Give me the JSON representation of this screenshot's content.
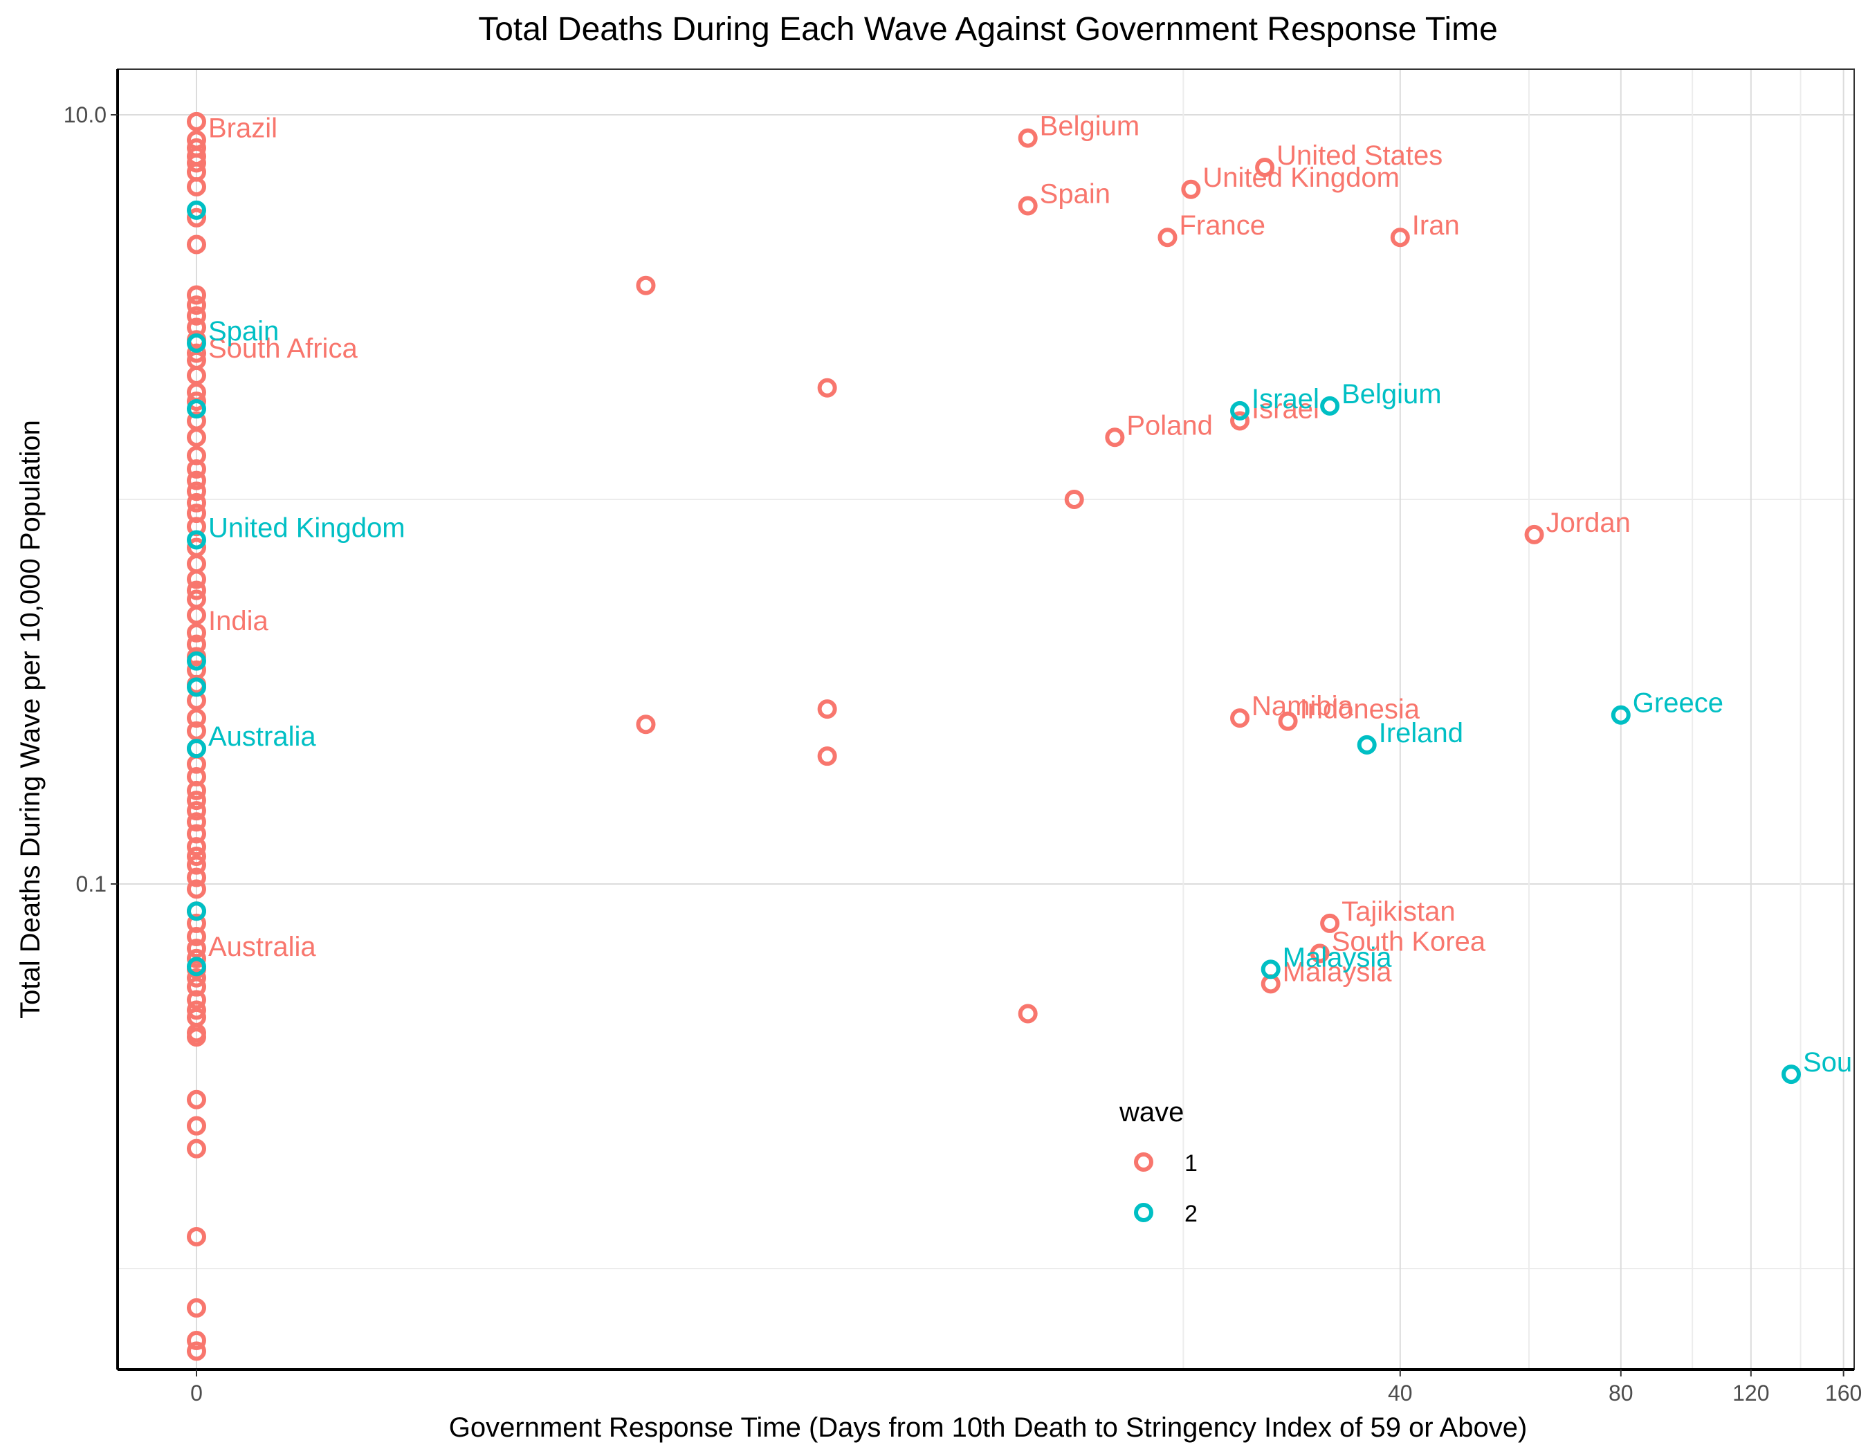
{
  "chart_data": {
    "type": "scatter",
    "title": "Total Deaths During Each Wave Against Government Response Time",
    "xlabel": "Government Response Time (Days from 10th Death to Stringency Index of 59 or Above)",
    "ylabel": "Total Deaths During Wave per 10,000 Population",
    "x_scale": "pseudo-log (log1p)",
    "y_scale": "log10",
    "xlim": [
      -0.6,
      170
    ],
    "ylim": [
      0.0061,
      14.5
    ],
    "x_ticks": [
      0,
      40,
      80,
      120,
      160
    ],
    "x_tick_labels": [
      "0",
      "40",
      "80",
      "120",
      "160"
    ],
    "y_ticks": [
      0.1,
      10
    ],
    "y_tick_labels": [
      "0.1",
      "10.0"
    ],
    "grid": true,
    "legend": {
      "title": "wave",
      "placement": "inside-bottom-center",
      "entries": [
        {
          "label": "1",
          "color": "#F8766D"
        },
        {
          "label": "2",
          "color": "#00BFC4"
        }
      ]
    },
    "series": [
      {
        "name": "1",
        "color": "#F8766D",
        "points": [
          {
            "x": 0,
            "y": 9.6
          },
          {
            "x": 0,
            "y": 8.6,
            "label": "Brazil"
          },
          {
            "x": 0,
            "y": 8.2
          },
          {
            "x": 0,
            "y": 7.8
          },
          {
            "x": 0,
            "y": 7.5
          },
          {
            "x": 0,
            "y": 7.1
          },
          {
            "x": 0,
            "y": 6.5
          },
          {
            "x": 0,
            "y": 5.4
          },
          {
            "x": 0,
            "y": 4.6
          },
          {
            "x": 0,
            "y": 3.4
          },
          {
            "x": 0,
            "y": 3.2
          },
          {
            "x": 0,
            "y": 3.0
          },
          {
            "x": 0,
            "y": 2.8
          },
          {
            "x": 0,
            "y": 2.6
          },
          {
            "x": 0,
            "y": 2.4
          },
          {
            "x": 0,
            "y": 2.3,
            "label": "South Africa"
          },
          {
            "x": 0,
            "y": 2.1
          },
          {
            "x": 0,
            "y": 1.9
          },
          {
            "x": 0,
            "y": 1.8
          },
          {
            "x": 0,
            "y": 1.6
          },
          {
            "x": 0,
            "y": 1.45
          },
          {
            "x": 0,
            "y": 1.3
          },
          {
            "x": 0,
            "y": 1.2
          },
          {
            "x": 0,
            "y": 1.12
          },
          {
            "x": 0,
            "y": 1.05
          },
          {
            "x": 0,
            "y": 0.98
          },
          {
            "x": 0,
            "y": 0.92
          },
          {
            "x": 0,
            "y": 0.85
          },
          {
            "x": 0,
            "y": 0.75
          },
          {
            "x": 0,
            "y": 0.68
          },
          {
            "x": 0,
            "y": 0.62
          },
          {
            "x": 0,
            "y": 0.58
          },
          {
            "x": 0,
            "y": 0.55
          },
          {
            "x": 0,
            "y": 0.5
          },
          {
            "x": 0,
            "y": 0.45,
            "label": "India"
          },
          {
            "x": 0,
            "y": 0.42
          },
          {
            "x": 0,
            "y": 0.39
          },
          {
            "x": 0,
            "y": 0.36
          },
          {
            "x": 0,
            "y": 0.33
          },
          {
            "x": 0,
            "y": 0.3
          },
          {
            "x": 0,
            "y": 0.27
          },
          {
            "x": 0,
            "y": 0.25
          },
          {
            "x": 0,
            "y": 0.225
          },
          {
            "x": 0,
            "y": 0.205
          },
          {
            "x": 0,
            "y": 0.19
          },
          {
            "x": 0,
            "y": 0.175
          },
          {
            "x": 0,
            "y": 0.165
          },
          {
            "x": 0,
            "y": 0.155
          },
          {
            "x": 0,
            "y": 0.145
          },
          {
            "x": 0,
            "y": 0.135
          },
          {
            "x": 0,
            "y": 0.125
          },
          {
            "x": 0,
            "y": 0.118
          },
          {
            "x": 0,
            "y": 0.112
          },
          {
            "x": 0,
            "y": 0.104
          },
          {
            "x": 0,
            "y": 0.097
          },
          {
            "x": 0,
            "y": 0.085
          },
          {
            "x": 0,
            "y": 0.079
          },
          {
            "x": 0,
            "y": 0.073
          },
          {
            "x": 0,
            "y": 0.068
          },
          {
            "x": 0,
            "y": 0.064,
            "label": "Australia"
          },
          {
            "x": 0,
            "y": 0.06
          },
          {
            "x": 0,
            "y": 0.057
          },
          {
            "x": 0,
            "y": 0.054
          },
          {
            "x": 0,
            "y": 0.05
          },
          {
            "x": 0,
            "y": 0.047
          },
          {
            "x": 0,
            "y": 0.045
          },
          {
            "x": 0,
            "y": 0.041
          },
          {
            "x": 0,
            "y": 0.04
          },
          {
            "x": 0,
            "y": 0.0275
          },
          {
            "x": 0,
            "y": 0.0235
          },
          {
            "x": 0,
            "y": 0.0205
          },
          {
            "x": 0,
            "y": 0.0121
          },
          {
            "x": 0,
            "y": 0.0079
          },
          {
            "x": 0,
            "y": 0.0065
          },
          {
            "x": 0,
            "y": 0.0061
          },
          {
            "x": 3,
            "y": 3.6
          },
          {
            "x": 3,
            "y": 0.26
          },
          {
            "x": 6,
            "y": 1.95
          },
          {
            "x": 6,
            "y": 0.285
          },
          {
            "x": 6,
            "y": 0.215
          },
          {
            "x": 12,
            "y": 8.7,
            "label": "Belgium"
          },
          {
            "x": 12,
            "y": 5.8,
            "label": "Spain"
          },
          {
            "x": 12,
            "y": 0.046
          },
          {
            "x": 14,
            "y": 1.0
          },
          {
            "x": 16,
            "y": 1.45,
            "label": "Poland"
          },
          {
            "x": 19,
            "y": 4.8,
            "label": "France"
          },
          {
            "x": 20.5,
            "y": 6.4,
            "label": "United Kingdom"
          },
          {
            "x": 24,
            "y": 1.6,
            "label": "Israel"
          },
          {
            "x": 24,
            "y": 0.27,
            "label": "Namibia"
          },
          {
            "x": 26,
            "y": 7.3,
            "label": "United States"
          },
          {
            "x": 26.5,
            "y": 0.055,
            "label": "Malaysia"
          },
          {
            "x": 28,
            "y": 0.265,
            "label": "Indonesia"
          },
          {
            "x": 31,
            "y": 0.066,
            "label": "South Korea"
          },
          {
            "x": 32,
            "y": 0.079,
            "label": "Tajikistan"
          },
          {
            "x": 40,
            "y": 4.8,
            "label": "Iran"
          },
          {
            "x": 61,
            "y": 0.81,
            "label": "Jordan"
          }
        ]
      },
      {
        "name": "2",
        "color": "#00BFC4",
        "points": [
          {
            "x": 0,
            "y": 5.65
          },
          {
            "x": 0,
            "y": 2.55,
            "label": "Spain"
          },
          {
            "x": 0,
            "y": 1.72
          },
          {
            "x": 0,
            "y": 0.785,
            "label": "United Kingdom"
          },
          {
            "x": 0,
            "y": 0.38
          },
          {
            "x": 0,
            "y": 0.325
          },
          {
            "x": 0,
            "y": 0.225,
            "label": "Australia"
          },
          {
            "x": 0,
            "y": 0.085
          },
          {
            "x": 0,
            "y": 0.061
          },
          {
            "x": 24,
            "y": 1.7,
            "label": "Israel"
          },
          {
            "x": 26.5,
            "y": 0.06,
            "label": "Malaysia"
          },
          {
            "x": 32,
            "y": 1.75,
            "label": "Belgium"
          },
          {
            "x": 36,
            "y": 0.23,
            "label": "Ireland"
          },
          {
            "x": 80,
            "y": 0.275,
            "label": "Greece"
          },
          {
            "x": 136,
            "y": 0.032,
            "label": "Sou"
          }
        ]
      }
    ]
  }
}
